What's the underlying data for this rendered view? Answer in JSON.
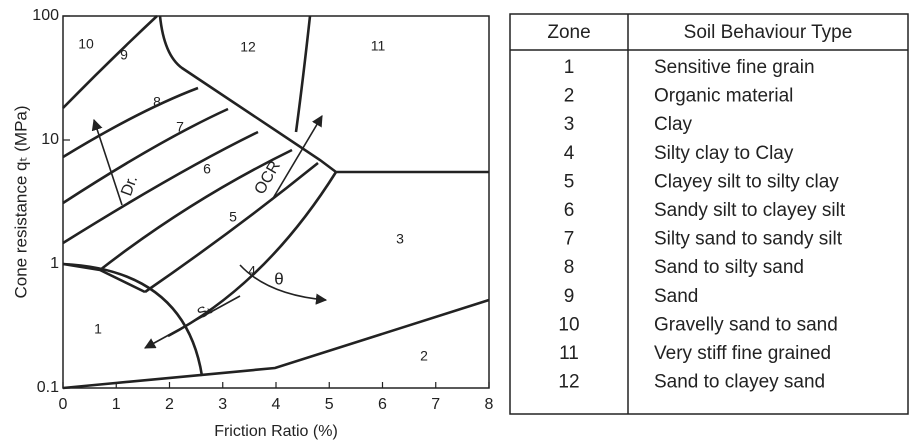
{
  "chart_data": {
    "type": "zone_chart",
    "x_label": "Friction Ratio (%)",
    "y_label": "Cone resistance qₜ (MPa)",
    "xlim": [
      0,
      8
    ],
    "xticks": [
      0,
      1,
      2,
      3,
      4,
      5,
      6,
      7,
      8
    ],
    "ylim": [
      0.1,
      100
    ],
    "yticks": [
      0.1,
      1,
      10,
      100
    ],
    "log_y": true,
    "zone_labels": [
      "1",
      "2",
      "3",
      "4",
      "5",
      "6",
      "7",
      "8",
      "9",
      "10",
      "11",
      "12"
    ],
    "annotations": [
      "Dr.",
      "OCR",
      "Sₜ",
      "θ"
    ]
  },
  "table": {
    "header": [
      "Zone",
      "Soil Behaviour Type"
    ],
    "rows": [
      [
        "1",
        "Sensitive fine grain"
      ],
      [
        "2",
        "Organic material"
      ],
      [
        "3",
        "Clay"
      ],
      [
        "4",
        "Silty clay to Clay"
      ],
      [
        "5",
        "Clayey silt to silty clay"
      ],
      [
        "6",
        "Sandy silt to clayey silt"
      ],
      [
        "7",
        "Silty sand to sandy silt"
      ],
      [
        "8",
        "Sand to silty sand"
      ],
      [
        "9",
        "Sand"
      ],
      [
        "10",
        "Gravelly sand to sand"
      ],
      [
        "11",
        "Very stiff fine grained"
      ],
      [
        "12",
        "Sand to clayey sand"
      ]
    ]
  }
}
